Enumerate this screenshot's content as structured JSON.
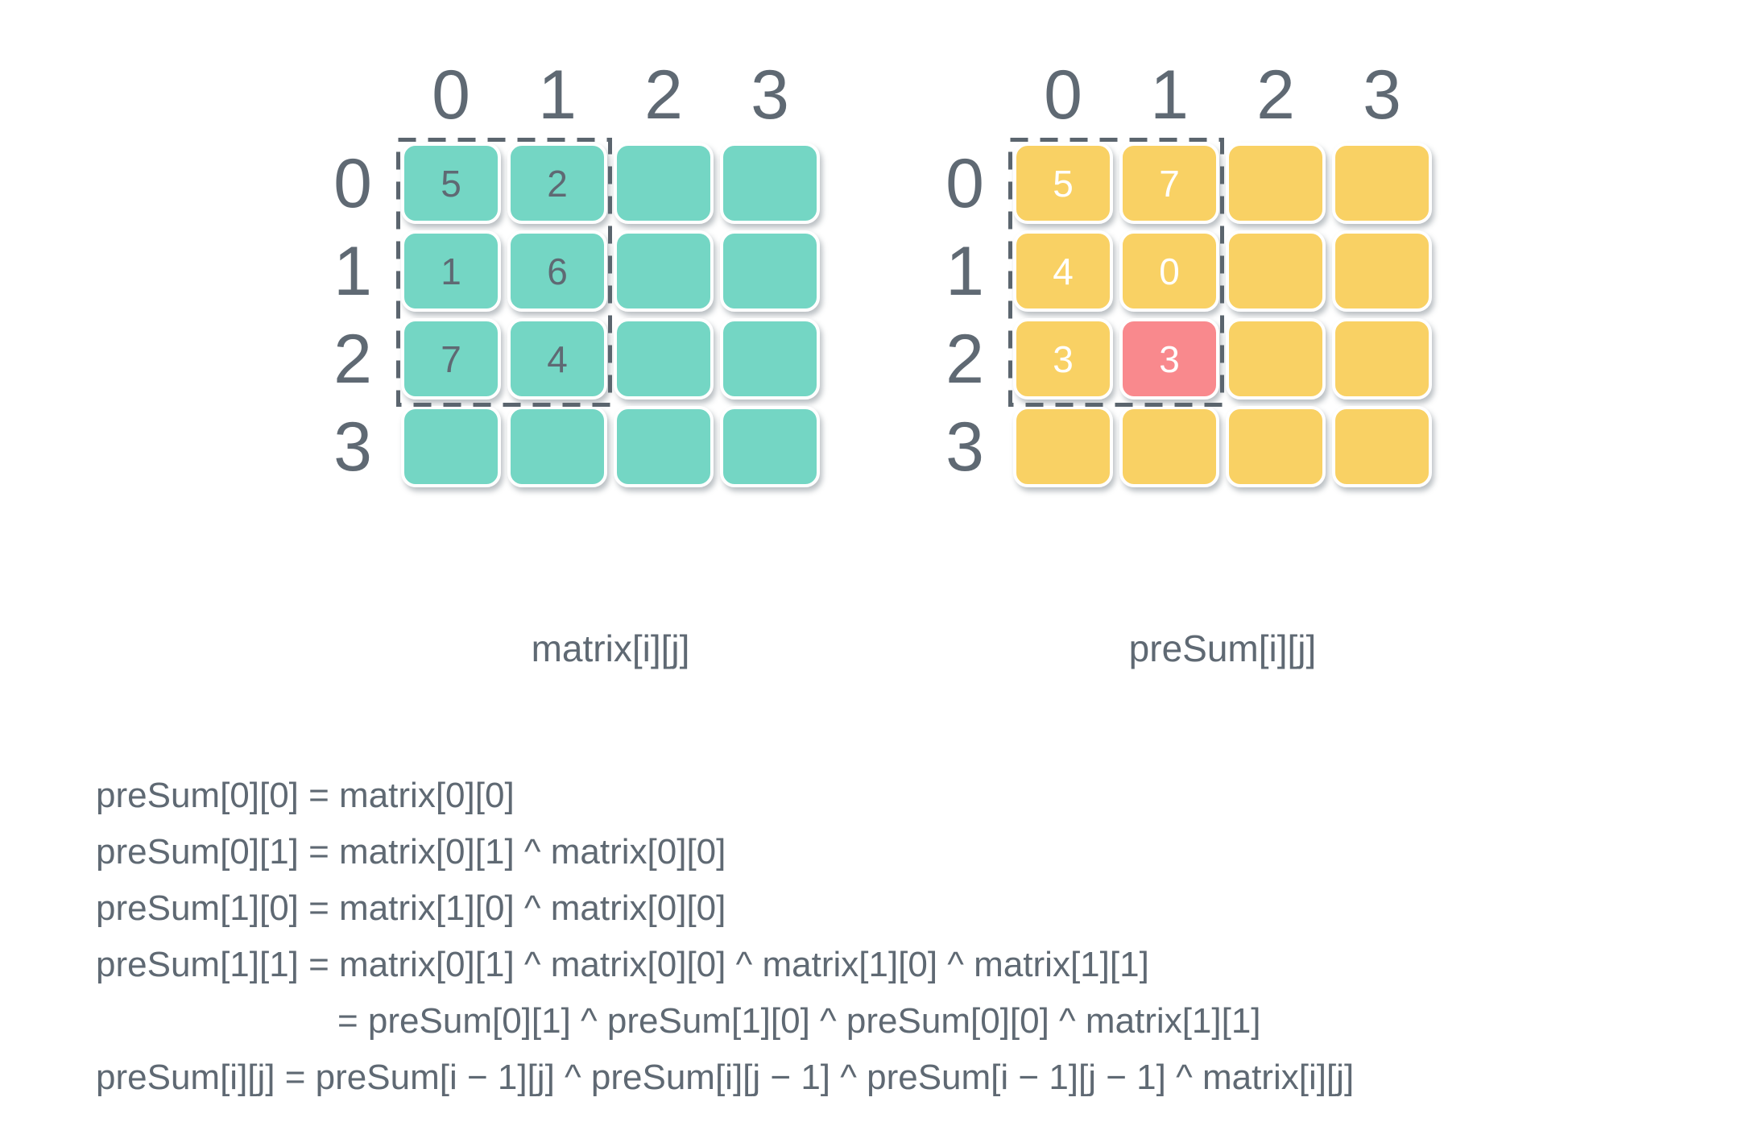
{
  "colors": {
    "teal": "#74d6c4",
    "yellow": "#f9d164",
    "red": "#f9898d",
    "text_gray": "#5f6973",
    "dashed_border": "#5b656e",
    "white": "#ffffff"
  },
  "grids": [
    {
      "id": "matrix",
      "label": "matrix[i][j]",
      "cell_color_key": "teal",
      "value_color_key": "text_gray",
      "col_headers": [
        "0",
        "1",
        "2",
        "3"
      ],
      "row_headers": [
        "0",
        "1",
        "2",
        "3"
      ],
      "cells": [
        [
          "5",
          "2",
          "",
          ""
        ],
        [
          "1",
          "6",
          "",
          ""
        ],
        [
          "7",
          "4",
          "",
          ""
        ],
        [
          "",
          "",
          "",
          ""
        ]
      ],
      "dashed_region": {
        "rows": 3,
        "cols": 2
      }
    },
    {
      "id": "preSum",
      "label": "preSum[i][j]",
      "cell_color_key": "yellow",
      "value_color_key": "white",
      "col_headers": [
        "0",
        "1",
        "2",
        "3"
      ],
      "row_headers": [
        "0",
        "1",
        "2",
        "3"
      ],
      "cells": [
        [
          "5",
          "7",
          "",
          ""
        ],
        [
          "4",
          "0",
          "",
          ""
        ],
        [
          "3",
          "3",
          "",
          ""
        ],
        [
          "",
          "",
          "",
          ""
        ]
      ],
      "highlight": {
        "row": 2,
        "col": 1,
        "color_key": "red"
      },
      "dashed_region": {
        "rows": 3,
        "cols": 2
      }
    }
  ],
  "formulas": [
    {
      "text": "preSum[0][0] = matrix[0][0]",
      "indent": false
    },
    {
      "text": "preSum[0][1] = matrix[0][1] ^ matrix[0][0]",
      "indent": false
    },
    {
      "text": "preSum[1][0] = matrix[1][0] ^ matrix[0][0]",
      "indent": false
    },
    {
      "text": "preSum[1][1] = matrix[0][1] ^ matrix[0][0] ^ matrix[1][0] ^ matrix[1][1]",
      "indent": false
    },
    {
      "text": "= preSum[0][1] ^ preSum[1][0] ^ preSum[0][0] ^ matrix[1][1]",
      "indent": true
    },
    {
      "text": "preSum[i][j] = preSum[i − 1][j] ^ preSum[i][j − 1] ^ preSum[i − 1][j − 1] ^ matrix[i][j]",
      "indent": false
    }
  ]
}
